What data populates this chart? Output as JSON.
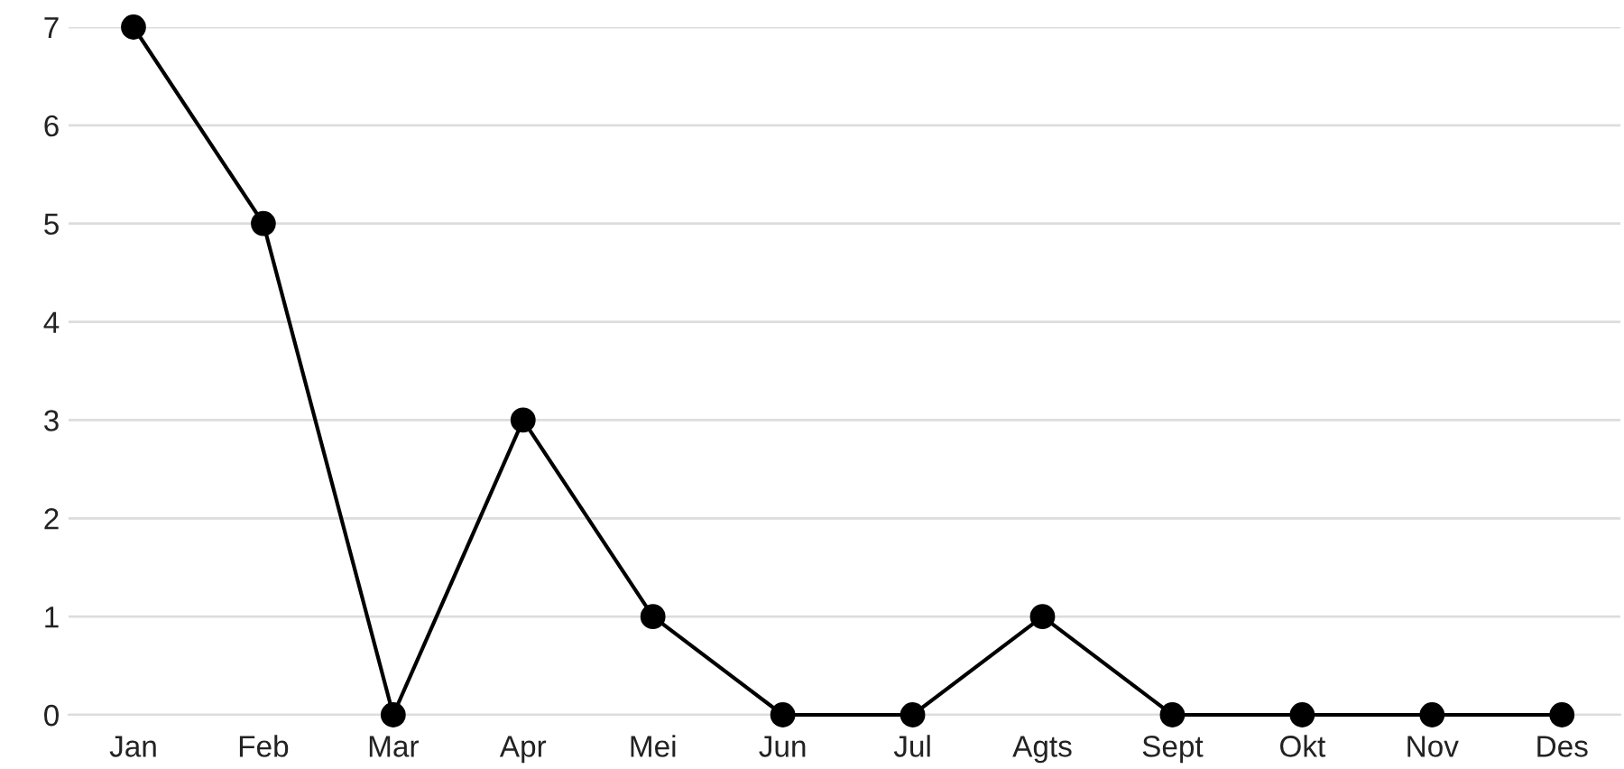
{
  "chart_data": {
    "type": "line",
    "categories": [
      "Jan",
      "Feb",
      "Mar",
      "Apr",
      "Mei",
      "Jun",
      "Jul",
      "Agts",
      "Sept",
      "Okt",
      "Nov",
      "Des"
    ],
    "series": [
      {
        "color": "#000000",
        "values": [
          7,
          5,
          0,
          3,
          1,
          0,
          0,
          1,
          0,
          0,
          0,
          0
        ]
      }
    ],
    "ylim": [
      0,
      7
    ],
    "yticks": [
      0,
      1,
      2,
      3,
      4,
      5,
      6,
      7
    ],
    "grid": "y",
    "legend": false,
    "marker": "circle",
    "line_style": "solid"
  }
}
